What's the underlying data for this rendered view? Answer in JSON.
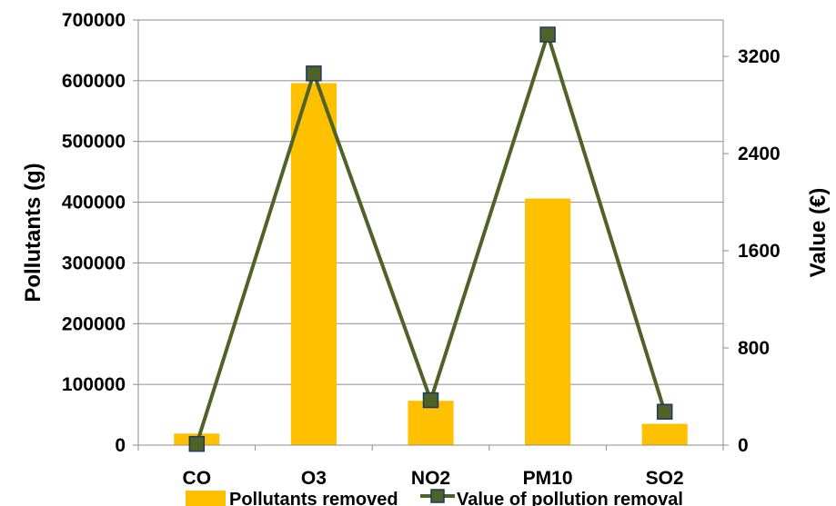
{
  "chart_data": {
    "type": "bar",
    "categories": [
      "CO",
      "O3",
      "NO2",
      "PM10",
      "SO2"
    ],
    "series": [
      {
        "name": "Pollutants removed",
        "type": "bar",
        "axis": "left",
        "color": "#FFC000",
        "values": [
          19000,
          596000,
          73000,
          406000,
          35000
        ]
      },
      {
        "name": "Value of pollution removal",
        "type": "line",
        "axis": "right",
        "color": "#4F6228",
        "marker_color": "#4F6228",
        "marker_edge": "#1F3864",
        "values": [
          10,
          3060,
          370,
          3380,
          275
        ]
      }
    ],
    "ylabel": "Pollutants (g)",
    "y2label": "Value (€)",
    "ylim": [
      0,
      700000
    ],
    "y2lim": [
      0,
      3500
    ],
    "yticks": [
      "0",
      "100000",
      "200000",
      "300000",
      "400000",
      "500000",
      "600000",
      "700000"
    ],
    "y2ticks": [
      "0",
      "800",
      "1600",
      "2400",
      "3200"
    ],
    "grid": true,
    "legend_position": "bottom"
  }
}
